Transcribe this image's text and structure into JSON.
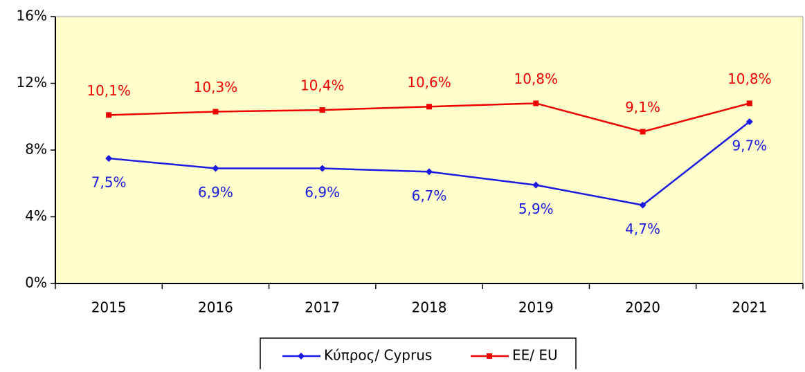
{
  "chart_data": {
    "type": "line",
    "categories": [
      "2015",
      "2016",
      "2017",
      "2018",
      "2019",
      "2020",
      "2021"
    ],
    "series": [
      {
        "name": "Κύπρος/ Cyprus",
        "color": "#1a1ae0",
        "values": [
          7.5,
          6.9,
          6.9,
          6.7,
          5.9,
          4.7,
          9.7
        ],
        "value_labels": [
          "7,5%",
          "6,9%",
          "6,9%",
          "6,7%",
          "5,9%",
          "4,7%",
          "9,7%"
        ]
      },
      {
        "name": "ΕΕ/ EU",
        "color": "#ee0000",
        "values": [
          10.1,
          10.3,
          10.4,
          10.6,
          10.8,
          9.1,
          10.8
        ],
        "value_labels": [
          "10,1%",
          "10,3%",
          "10,4%",
          "10,6%",
          "10,8%",
          "9,1%",
          "10,8%"
        ]
      }
    ],
    "ylim": [
      0,
      16
    ],
    "yticks": [
      {
        "value": 0,
        "label": "0%"
      },
      {
        "value": 4,
        "label": "4%"
      },
      {
        "value": 8,
        "label": "8%"
      },
      {
        "value": 12,
        "label": "12%"
      },
      {
        "value": 16,
        "label": "16%"
      }
    ],
    "plot_background": "#ffffcc"
  }
}
